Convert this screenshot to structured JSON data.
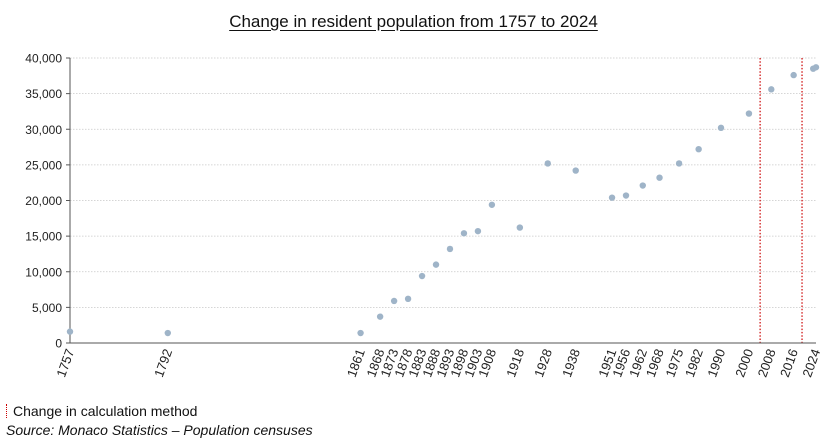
{
  "chart_data": {
    "type": "scatter",
    "title": "Change in resident population from 1757 to 2024",
    "xlabel": "",
    "ylabel": "",
    "ylim": [
      0,
      40000
    ],
    "yticks": [
      0,
      5000,
      10000,
      15000,
      20000,
      25000,
      30000,
      35000,
      40000
    ],
    "ytick_labels": [
      "0",
      "5,000",
      "10,000",
      "15,000",
      "20,000",
      "25,000",
      "30,000",
      "35,000",
      "40,000"
    ],
    "grid": "horizontal",
    "point_color": "#9fb4c8",
    "marker_color": "#cc0000",
    "xtick_labels": [
      "1757",
      "1792",
      "1861",
      "1868",
      "1873",
      "1878",
      "1883",
      "1888",
      "1893",
      "1898",
      "1903",
      "1908",
      "1918",
      "1928",
      "1938",
      "1951",
      "1956",
      "1962",
      "1968",
      "1975",
      "1982",
      "1990",
      "2000",
      "2008",
      "2016",
      "2024"
    ],
    "x": [
      1757,
      1792,
      1861,
      1868,
      1873,
      1878,
      1883,
      1888,
      1893,
      1898,
      1903,
      1908,
      1918,
      1928,
      1938,
      1951,
      1956,
      1962,
      1968,
      1975,
      1982,
      1990,
      2000,
      2008,
      2016,
      2023,
      2024
    ],
    "y": [
      1600,
      1400,
      1400,
      3700,
      5900,
      6200,
      9400,
      11000,
      13200,
      15400,
      15700,
      19400,
      16200,
      25200,
      24200,
      20400,
      20700,
      22100,
      23200,
      25200,
      27200,
      30200,
      32200,
      35600,
      37600,
      38500,
      38700
    ],
    "vertical_markers": [
      2004,
      2019
    ],
    "legend": [
      {
        "label": "Change in calculation method",
        "style": "dotted-red-line"
      }
    ]
  },
  "source": "Source: Monaco Statistics – Population censuses"
}
